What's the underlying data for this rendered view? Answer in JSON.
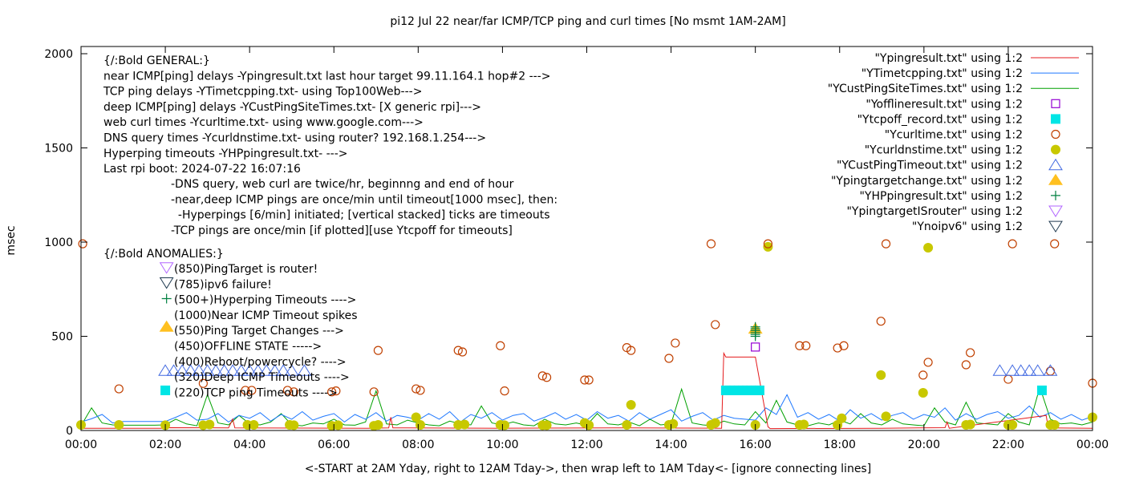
{
  "chart_data": {
    "type": "line",
    "title": "pi12 Jul 22  near/far ICMP/TCP ping and curl times [No msmt 1AM-2AM]",
    "xlabel": "<-START at 2AM Yday, right to 12AM Tday->, then wrap left to 1AM Tday<- [ignore connecting lines]",
    "ylabel": "msec",
    "xlim": [
      0,
      24
    ],
    "ylim": [
      0,
      2050
    ],
    "x_unit": "hours",
    "x_ticks": [
      0,
      2,
      4,
      6,
      8,
      10,
      12,
      14,
      16,
      18,
      20,
      22,
      24
    ],
    "x_tick_labels": [
      "00:00",
      "02:00",
      "04:00",
      "06:00",
      "08:00",
      "10:00",
      "12:00",
      "14:00",
      "16:00",
      "18:00",
      "20:00",
      "22:00",
      "00:00"
    ],
    "y_ticks": [
      0,
      500,
      1000,
      1500,
      2000
    ],
    "y_tick_labels": [
      "0",
      "500",
      "1000",
      "1500",
      "2000"
    ],
    "legend_position": "top-right",
    "grid": false,
    "series": [
      {
        "name": "\"Ypingresult.txt\" using 1:2",
        "style": "line",
        "color": "#e41a1c",
        "points": [
          [
            0,
            12
          ],
          [
            1.9,
            12
          ],
          [
            2.1,
            15
          ],
          [
            3.5,
            14
          ],
          [
            3.6,
            60
          ],
          [
            3.65,
            14
          ],
          [
            6.8,
            12
          ],
          [
            7.3,
            14
          ],
          [
            7.35,
            70
          ],
          [
            7.4,
            14
          ],
          [
            10,
            12
          ],
          [
            13,
            14
          ],
          [
            15.2,
            12
          ],
          [
            15.25,
            410
          ],
          [
            15.3,
            390
          ],
          [
            16.0,
            390
          ],
          [
            16.3,
            20
          ],
          [
            16.35,
            10
          ],
          [
            19,
            12
          ],
          [
            20.5,
            15
          ],
          [
            20.55,
            45
          ],
          [
            20.6,
            12
          ],
          [
            22.9,
            80
          ],
          [
            22.95,
            14
          ],
          [
            24,
            12
          ]
        ]
      },
      {
        "name": "\"YTimetcpping.txt\" using 1:2",
        "style": "line",
        "color": "#1e78ff",
        "x_step": 0.25,
        "values": [
          45,
          62,
          85,
          40,
          48,
          48,
          48,
          48,
          48,
          70,
          95,
          55,
          60,
          90,
          45,
          80,
          65,
          95,
          50,
          85,
          60,
          100,
          55,
          75,
          90,
          45,
          85,
          60,
          95,
          50,
          80,
          70,
          55,
          90,
          60,
          100,
          45,
          85,
          65,
          95,
          55,
          80,
          90,
          50,
          70,
          95,
          60,
          85,
          55,
          100,
          65,
          80,
          50,
          95,
          60,
          85,
          110,
          50,
          75,
          95,
          55,
          80,
          65,
          60,
          55,
          120,
          85,
          190,
          70,
          95,
          60,
          85,
          50,
          110,
          65,
          90,
          55,
          80,
          95,
          60,
          85,
          70,
          120,
          55,
          90,
          60,
          85,
          100,
          65,
          80,
          130,
          70,
          95,
          60,
          85,
          55,
          75
        ]
      },
      {
        "name": "\"YCustPingSiteTimes.txt\" using 1:2",
        "style": "line",
        "color": "#00a000",
        "x_step": 0.25,
        "values": [
          25,
          120,
          40,
          30,
          28,
          28,
          28,
          28,
          30,
          60,
          35,
          25,
          190,
          40,
          30,
          80,
          35,
          30,
          45,
          90,
          30,
          25,
          40,
          35,
          60,
          30,
          28,
          45,
          210,
          35,
          30,
          55,
          40,
          30,
          25,
          50,
          35,
          30,
          130,
          40,
          30,
          45,
          30,
          25,
          60,
          35,
          30,
          40,
          28,
          90,
          35,
          30,
          45,
          25,
          60,
          30,
          35,
          220,
          40,
          30,
          25,
          50,
          35,
          30,
          100,
          40,
          160,
          45,
          30,
          25,
          40,
          30,
          55,
          35,
          90,
          40,
          30,
          60,
          35,
          30,
          25,
          120,
          45,
          30,
          150,
          40,
          35,
          30,
          90,
          45,
          30,
          230,
          60,
          35,
          40,
          30,
          45
        ]
      },
      {
        "name": "\"Yofflineresult.txt\" using 1:2",
        "style": "open-square",
        "color": "#9400d3",
        "points": [
          [
            16.0,
            443
          ]
        ]
      },
      {
        "name": "\"Ytcpoff_record.txt\" using 1:2",
        "style": "filled-square",
        "color": "#00e5e5",
        "points": [
          [
            2.0,
            213
          ],
          [
            15.3,
            213
          ],
          [
            15.4,
            213
          ],
          [
            15.5,
            213
          ],
          [
            15.6,
            213
          ],
          [
            15.7,
            213
          ],
          [
            15.8,
            213
          ],
          [
            15.9,
            213
          ],
          [
            16.0,
            213
          ],
          [
            16.1,
            213
          ],
          [
            22.8,
            213
          ]
        ]
      },
      {
        "name": "\"Ycurltime.txt\" using 1:2",
        "style": "open-circle",
        "color": "#c04000",
        "points": [
          [
            0.04,
            991
          ],
          [
            0.9,
            221
          ],
          [
            2.9,
            250
          ],
          [
            3.9,
            213
          ],
          [
            4.05,
            213
          ],
          [
            4.9,
            213
          ],
          [
            5.05,
            205
          ],
          [
            5.95,
            205
          ],
          [
            6.05,
            210
          ],
          [
            6.95,
            205
          ],
          [
            7.05,
            425
          ],
          [
            7.95,
            221
          ],
          [
            8.05,
            213
          ],
          [
            8.95,
            425
          ],
          [
            9.05,
            417
          ],
          [
            9.95,
            450
          ],
          [
            10.05,
            210
          ],
          [
            10.95,
            290
          ],
          [
            11.05,
            282
          ],
          [
            11.95,
            268
          ],
          [
            12.05,
            268
          ],
          [
            12.95,
            440
          ],
          [
            13.05,
            425
          ],
          [
            13.95,
            383
          ],
          [
            14.1,
            464
          ],
          [
            14.95,
            991
          ],
          [
            15.05,
            562
          ],
          [
            16.3,
            991
          ],
          [
            17.05,
            450
          ],
          [
            17.2,
            450
          ],
          [
            17.95,
            438
          ],
          [
            18.1,
            450
          ],
          [
            18.98,
            580
          ],
          [
            19.1,
            991
          ],
          [
            19.98,
            294
          ],
          [
            20.1,
            362
          ],
          [
            21.0,
            349
          ],
          [
            21.1,
            413
          ],
          [
            22.0,
            272
          ],
          [
            22.1,
            991
          ],
          [
            23.0,
            315
          ],
          [
            23.1,
            991
          ],
          [
            24.0,
            251
          ]
        ]
      },
      {
        "name": "\"Ycurldnstime.txt\" using 1:2",
        "style": "filled-circle",
        "color": "#c8c800",
        "points": [
          [
            0,
            30
          ],
          [
            0.9,
            30
          ],
          [
            2.0,
            28
          ],
          [
            2.9,
            28
          ],
          [
            3.05,
            32
          ],
          [
            3.95,
            30
          ],
          [
            4.1,
            30
          ],
          [
            4.95,
            30
          ],
          [
            5.05,
            28
          ],
          [
            5.95,
            25
          ],
          [
            6.1,
            28
          ],
          [
            6.95,
            25
          ],
          [
            7.05,
            30
          ],
          [
            7.95,
            70
          ],
          [
            8.05,
            30
          ],
          [
            8.95,
            30
          ],
          [
            9.1,
            32
          ],
          [
            9.95,
            30
          ],
          [
            10.05,
            28
          ],
          [
            10.95,
            28
          ],
          [
            11.05,
            28
          ],
          [
            11.95,
            40
          ],
          [
            12.05,
            28
          ],
          [
            12.95,
            30
          ],
          [
            13.05,
            136
          ],
          [
            13.95,
            30
          ],
          [
            14.05,
            35
          ],
          [
            14.95,
            30
          ],
          [
            15.05,
            40
          ],
          [
            16.0,
            30
          ],
          [
            16.3,
            975
          ],
          [
            17.05,
            30
          ],
          [
            17.15,
            32
          ],
          [
            17.95,
            30
          ],
          [
            18.05,
            65
          ],
          [
            18.98,
            294
          ],
          [
            19.1,
            75
          ],
          [
            19.98,
            200
          ],
          [
            20.1,
            970
          ],
          [
            21.0,
            30
          ],
          [
            21.1,
            32
          ],
          [
            22.0,
            30
          ],
          [
            22.1,
            30
          ],
          [
            23.0,
            30
          ],
          [
            23.1,
            30
          ],
          [
            24.0,
            70
          ]
        ]
      },
      {
        "name": "\"YCustPingTimeout.txt\" using 1:2",
        "style": "open-triangle",
        "color": "#4169e1",
        "points": [
          [
            2.0,
            318
          ],
          [
            2.2,
            318
          ],
          [
            2.4,
            318
          ],
          [
            2.6,
            318
          ],
          [
            2.8,
            318
          ],
          [
            3.0,
            318
          ],
          [
            3.2,
            318
          ],
          [
            3.4,
            318
          ],
          [
            3.6,
            318
          ],
          [
            3.8,
            318
          ],
          [
            4.0,
            318
          ],
          [
            4.2,
            318
          ],
          [
            4.4,
            318
          ],
          [
            4.6,
            318
          ],
          [
            4.8,
            318
          ],
          [
            5.0,
            318
          ],
          [
            5.3,
            318
          ],
          [
            21.8,
            318
          ],
          [
            22.1,
            318
          ],
          [
            22.3,
            318
          ],
          [
            22.5,
            318
          ],
          [
            22.7,
            318
          ],
          [
            23.0,
            318
          ]
        ]
      },
      {
        "name": "\"Ypingtargetchange.txt\" using 1:2",
        "style": "filled-triangle",
        "color": "#ffc020",
        "points": [
          [
            2.03,
            550
          ],
          [
            16.0,
            540
          ]
        ]
      },
      {
        "name": "\"YHPpingresult.txt\" using 1:2",
        "style": "plus",
        "color": "#008040",
        "points": [
          [
            2.03,
            700
          ],
          [
            16.0,
            500
          ],
          [
            16.0,
            510
          ],
          [
            16.0,
            520
          ],
          [
            16.0,
            530
          ],
          [
            16.0,
            540
          ],
          [
            16.0,
            550
          ]
        ]
      },
      {
        "name": "\"YpingtargetISrouter\" using 1:2",
        "style": "open-inv-triangle",
        "color": "#b266ff",
        "points": [
          [
            2.03,
            865
          ]
        ]
      },
      {
        "name": "\"Ynoipv6\" using 1:2",
        "style": "open-inv-triangle",
        "color": "#203a50",
        "points": [
          [
            2.03,
            785
          ]
        ]
      }
    ],
    "annotations": {
      "general": [
        "{/:Bold GENERAL:}",
        "near ICMP[ping] delays -Ypingresult.txt last hour target 99.11.164.1 hop#2 --->",
        "TCP ping delays -YTimetcpping.txt- using Top100Web--->",
        "deep ICMP[ping] delays -YCustPingSiteTimes.txt- [X generic rpi]--->",
        "web curl times -Ycurltime.txt- using www.google.com--->",
        "DNS query times -Ycurldnstime.txt- using router? 192.168.1.254--->",
        "Hyperping timeouts -YHPpingresult.txt- --->",
        "Last rpi boot: 2024-07-22 16:07:16"
      ],
      "notes": [
        "-DNS query, web curl are twice/hr, beginnng and end of hour",
        "-near,deep ICMP pings are once/min until timeout[1000 msec], then:",
        "  -Hyperpings [6/min] initiated; [vertical stacked] ticks are timeouts",
        "-TCP pings are once/min [if plotted][use Ytcpoff for timeouts]"
      ],
      "anomalies_header": "{/:Bold ANOMALIES:}",
      "anomalies": [
        "(850)PingTarget is router!",
        "(785)ipv6 failure!",
        "(500+)Hyperping Timeouts ---->",
        "(1000)Near ICMP Timeout spikes",
        "(550)Ping Target Changes --->",
        "(450)OFFLINE STATE ----->",
        "(400)Reboot/powercycle? ---->",
        "(320)Deep ICMP Timeouts ---->",
        "(220)TCP ping Timeouts ---->"
      ]
    }
  }
}
